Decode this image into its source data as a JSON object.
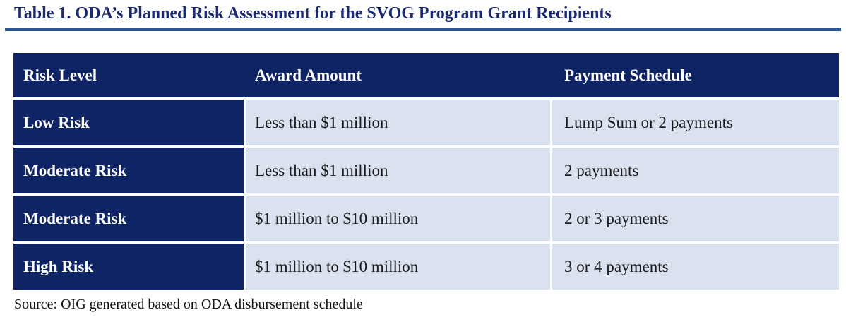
{
  "title": "Table 1. ODA’s Planned Risk Assessment for the SVOG Program Grant Recipients",
  "table": {
    "columns": [
      "Risk Level",
      "Award Amount",
      "Payment Schedule"
    ],
    "rows": [
      {
        "risk_level": "Low Risk",
        "award_amount": "Less than $1 million",
        "payment_schedule": "Lump Sum or 2 payments"
      },
      {
        "risk_level": "Moderate Risk",
        "award_amount": "Less than $1 million",
        "payment_schedule": "2 payments"
      },
      {
        "risk_level": "Moderate Risk",
        "award_amount": "$1 million to $10 million",
        "payment_schedule": "2 or 3 payments"
      },
      {
        "risk_level": "High Risk",
        "award_amount": "$1 million to $10 million",
        "payment_schedule": "3 or 4 payments"
      }
    ]
  },
  "source_note": "Source: OIG generated based on ODA disbursement schedule",
  "colors": {
    "header_bg": "#0e2464",
    "cell_bg": "#dae2f0",
    "title_color": "#1b2a6e",
    "rule_color": "#2b5797",
    "cell_text": "#1a1a1a"
  }
}
